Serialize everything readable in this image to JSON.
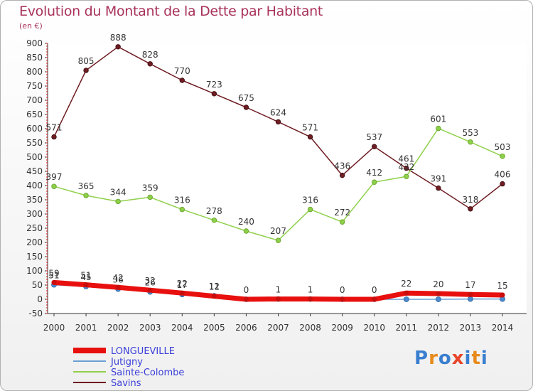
{
  "title": "Evolution du Montant de la Dette par Habitant",
  "subtitle": "(en €)",
  "logo": {
    "text": "Proxiti",
    "letters": [
      "P",
      "r",
      "o",
      "x",
      "i",
      "t",
      "i"
    ],
    "colors": [
      "#3a7fcf",
      "#e88a1a",
      "#3a7fcf",
      "#e8452a",
      "#3a7fcf",
      "#e88a1a",
      "#3a7fcf"
    ]
  },
  "chart_data": {
    "type": "line",
    "title": "Evolution du Montant de la Dette par Habitant",
    "subtitle": "(en €)",
    "x": [
      "2000",
      "2001",
      "2002",
      "2003",
      "2004",
      "2005",
      "2006",
      "2007",
      "2008",
      "2009",
      "2010",
      "2011",
      "2012",
      "2013",
      "2014"
    ],
    "ylim": [
      -50,
      900
    ],
    "yticks": [
      "-50",
      "0",
      "50",
      "100",
      "150",
      "200",
      "250",
      "300",
      "350",
      "400",
      "450",
      "500",
      "550",
      "600",
      "650",
      "700",
      "750",
      "800",
      "850",
      "900"
    ],
    "ytick_values": [
      -50,
      0,
      50,
      100,
      150,
      200,
      250,
      300,
      350,
      400,
      450,
      500,
      550,
      600,
      650,
      700,
      750,
      800,
      850,
      900
    ],
    "grid": false,
    "legend_position": "bottom-left",
    "series": [
      {
        "name": "LONGUEVILLE",
        "color": "#e8100e",
        "values": [
          59,
          51,
          42,
          32,
          22,
          11,
          0,
          1,
          1,
          0,
          0,
          22,
          20,
          17,
          15
        ],
        "labels": [
          "59",
          "51",
          "42",
          "32",
          "22",
          "11",
          "0",
          "1",
          "1",
          "0",
          "0",
          "22",
          "20",
          "17",
          "15"
        ]
      },
      {
        "name": "Jutigny",
        "color": "#6a9fd4",
        "values": [
          51,
          45,
          36,
          26,
          17,
          12,
          0,
          1,
          1,
          0,
          0,
          0,
          0,
          1,
          1
        ],
        "labels": [
          "51",
          "45",
          "36",
          "26",
          "17",
          "12",
          "",
          "",
          "",
          "",
          "",
          "",
          "",
          "",
          ""
        ]
      },
      {
        "name": "Sainte-Colombe",
        "color": "#8fd04a",
        "values": [
          397,
          365,
          344,
          359,
          316,
          278,
          240,
          207,
          316,
          272,
          412,
          432,
          601,
          553,
          503
        ],
        "labels": [
          "397",
          "365",
          "344",
          "359",
          "316",
          "278",
          "240",
          "207",
          "316",
          "272",
          "412",
          "432",
          "601",
          "553",
          "503"
        ]
      },
      {
        "name": "Savins",
        "color": "#6e1d23",
        "values": [
          571,
          805,
          888,
          828,
          770,
          723,
          675,
          624,
          571,
          436,
          537,
          461,
          391,
          318,
          406
        ],
        "labels": [
          "571",
          "805",
          "888",
          "828",
          "770",
          "723",
          "675",
          "624",
          "571",
          "436",
          "537",
          "461",
          "391",
          "318",
          "406"
        ]
      }
    ]
  }
}
